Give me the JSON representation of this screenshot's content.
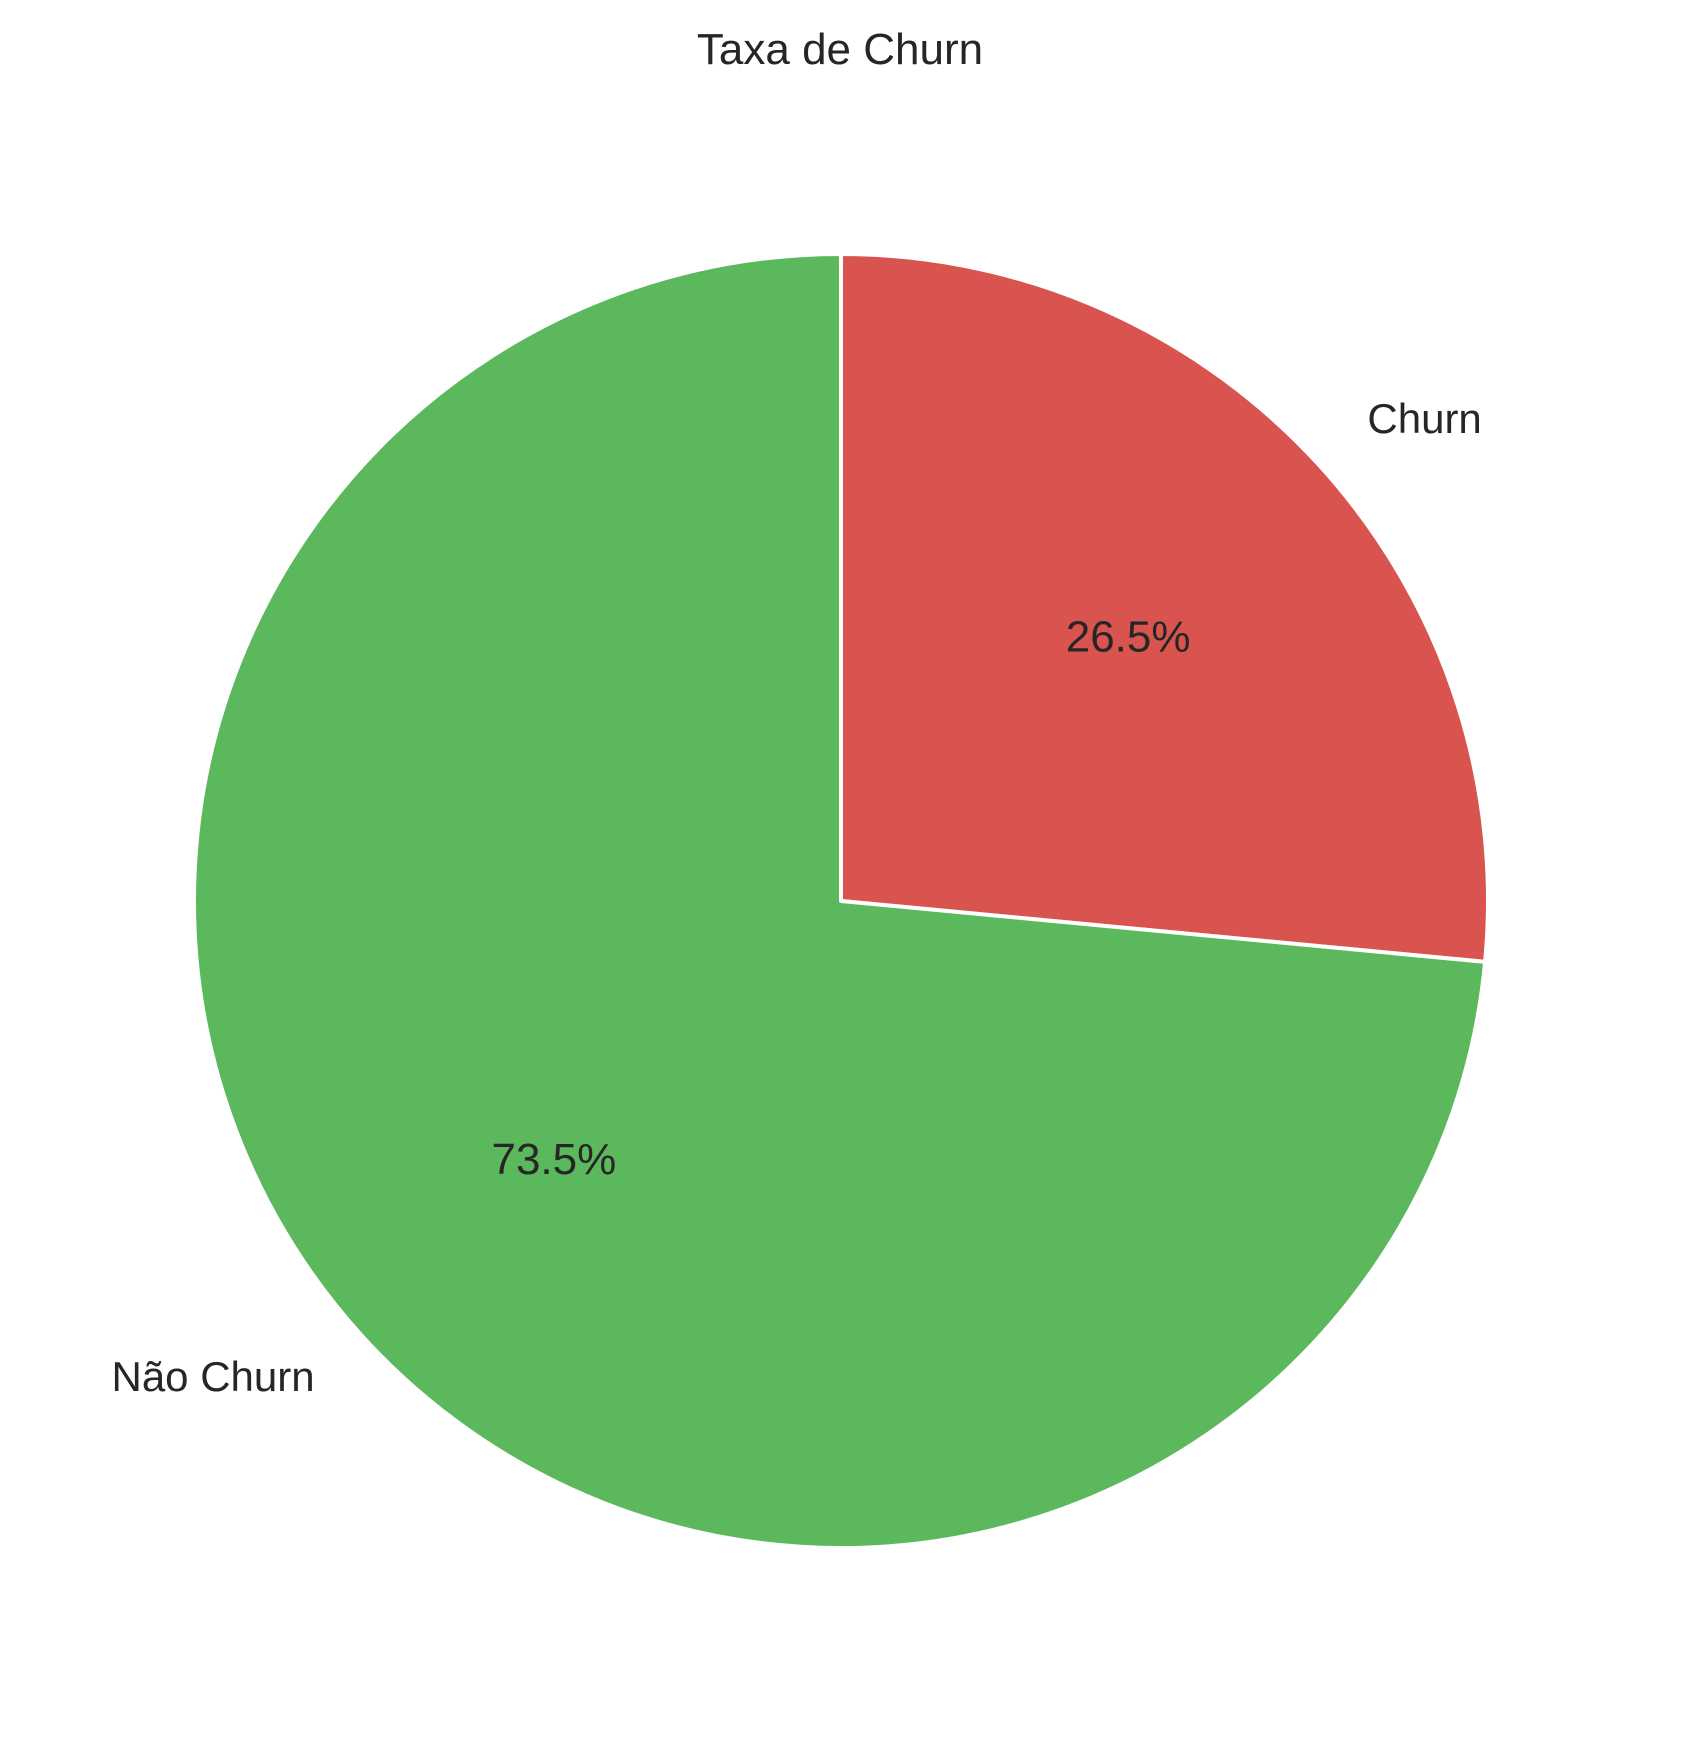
{
  "chart_data": {
    "type": "pie",
    "title": "Taxa de Churn",
    "start_angle_deg": 90,
    "direction": "clockwise",
    "slices": [
      {
        "label": "Churn",
        "value": 26.5,
        "pct_label": "26.5%",
        "color": "#d9534f"
      },
      {
        "label": "Não Churn",
        "value": 73.5,
        "pct_label": "73.5%",
        "color": "#5cb85c"
      }
    ]
  }
}
